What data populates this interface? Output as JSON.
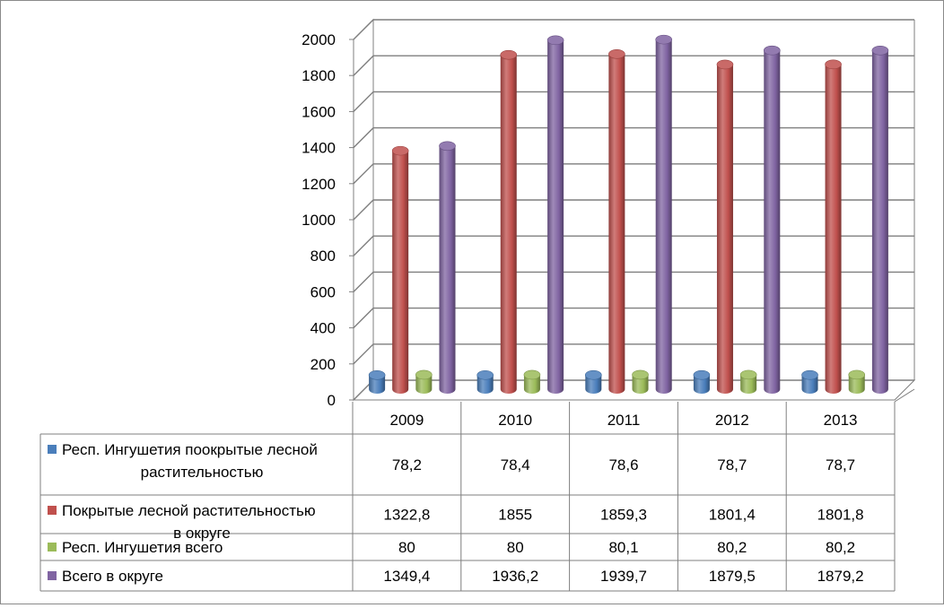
{
  "chart_data": {
    "type": "bar",
    "title": "",
    "xlabel": "",
    "ylabel": "",
    "ylim": [
      0,
      2000
    ],
    "yticks": [
      0,
      200,
      400,
      600,
      800,
      1000,
      1200,
      1400,
      1600,
      1800,
      2000
    ],
    "grid": true,
    "legend": "data-table",
    "categories": [
      "2009",
      "2010",
      "2011",
      "2012",
      "2013"
    ],
    "series": [
      {
        "name": "Респ. Ингушетия поокрытые лесной растительностью",
        "label_lines": [
          "Респ. Ингушетия поокрытые лесной",
          "растительностью"
        ],
        "color": "#4a7ebb",
        "values": [
          78.2,
          78.4,
          78.6,
          78.7,
          78.7
        ],
        "labels": [
          "78,2",
          "78,4",
          "78,6",
          "78,7",
          "78,7"
        ]
      },
      {
        "name": "Покрытые лесной растительностью в округе",
        "label_lines": [
          "Покрытые лесной растительностью",
          "в округе"
        ],
        "color": "#c0504d",
        "values": [
          1322.8,
          1855,
          1859.3,
          1801.4,
          1801.8
        ],
        "labels": [
          "1322,8",
          "1855",
          "1859,3",
          "1801,4",
          "1801,8"
        ]
      },
      {
        "name": "Респ. Ингушетия всего",
        "label_lines": [
          "Респ. Ингушетия всего"
        ],
        "color": "#9bbb59",
        "values": [
          80,
          80,
          80.1,
          80.2,
          80.2
        ],
        "labels": [
          "80",
          "80",
          "80,1",
          "80,2",
          "80,2"
        ]
      },
      {
        "name": "Всего в округе",
        "label_lines": [
          "Всего в округе"
        ],
        "color": "#8064a2",
        "values": [
          1349.4,
          1936.2,
          1939.7,
          1879.5,
          1879.2
        ],
        "labels": [
          "1349,4",
          "1936,2",
          "1939,7",
          "1879,5",
          "1879,2"
        ]
      }
    ]
  }
}
